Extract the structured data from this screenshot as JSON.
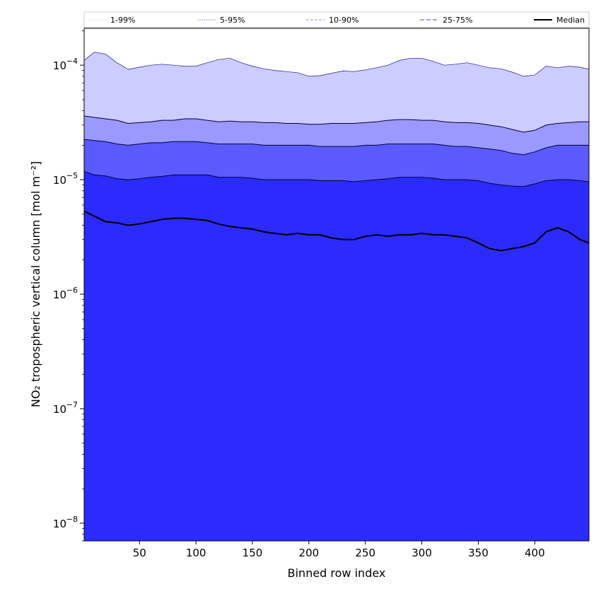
{
  "chart_data": {
    "type": "area",
    "xlabel": "Binned row index",
    "ylabel": "NO₂ tropospheric vertical column [mol m⁻²]",
    "xlim": [
      1,
      448
    ],
    "ylim": [
      7e-09,
      0.00021
    ],
    "yscale": "log",
    "grid": false,
    "legend_position": "top",
    "x_ticks": [
      50,
      100,
      150,
      200,
      250,
      300,
      350,
      400
    ],
    "y_ticks": [
      {
        "value": 1e-08,
        "mantissa": "10",
        "exponent": "−8"
      },
      {
        "value": 1e-07,
        "mantissa": "10",
        "exponent": "−7"
      },
      {
        "value": 1e-06,
        "mantissa": "10",
        "exponent": "−6"
      },
      {
        "value": 1e-05,
        "mantissa": "10",
        "exponent": "−5"
      },
      {
        "value": 0.0001,
        "mantissa": "10",
        "exponent": "−4"
      }
    ],
    "x": [
      1,
      10,
      20,
      30,
      40,
      50,
      60,
      70,
      80,
      90,
      100,
      110,
      120,
      130,
      140,
      150,
      160,
      170,
      180,
      190,
      200,
      210,
      220,
      230,
      240,
      250,
      260,
      270,
      280,
      290,
      300,
      310,
      320,
      330,
      340,
      350,
      360,
      370,
      380,
      390,
      400,
      410,
      420,
      430,
      440,
      448
    ],
    "bands": [
      {
        "name": "1-99%",
        "color": "#ccccff",
        "upper": [
          0.00011,
          0.00013,
          0.000125,
          0.000105,
          9.2e-05,
          9.6e-05,
          0.0001,
          0.000102,
          0.0001,
          9.8e-05,
          9.8e-05,
          0.000105,
          0.000112,
          0.000115,
          0.000105,
          9.8e-05,
          9.3e-05,
          9e-05,
          8.8e-05,
          8.6e-05,
          8e-05,
          8.1e-05,
          8.5e-05,
          8.9e-05,
          8.8e-05,
          9.1e-05,
          9.5e-05,
          0.0001,
          0.00011,
          0.000115,
          0.000115,
          0.000108,
          0.0001,
          0.000102,
          0.000105,
          0.0001,
          9.5e-05,
          9.3e-05,
          8.7e-05,
          8e-05,
          8.2e-05,
          9.8e-05,
          9.5e-05,
          9.8e-05,
          9.6e-05,
          9.2e-05
        ],
        "lower": [
          1.6e-06,
          1.2e-06,
          6e-07,
          5e-07,
          3e-07,
          2.5e-07,
          3e-07,
          6e-07,
          7e-07,
          5e-07,
          3.5e-07,
          4e-07,
          2.5e-07,
          8e-08,
          7e-09,
          7e-09,
          7e-09,
          7e-09,
          7e-09,
          7e-09,
          7e-09,
          7e-09,
          7e-09,
          7e-09,
          7e-09,
          7e-09,
          7e-09,
          7e-09,
          7e-09,
          7e-09,
          7e-09,
          7e-09,
          7e-09,
          7e-09,
          7e-09,
          7e-09,
          7e-09,
          7e-09,
          7e-09,
          7e-09,
          7e-09,
          7e-09,
          7e-09,
          7e-09,
          7e-09,
          7e-09
        ]
      },
      {
        "name": "5-95%",
        "color": "#9999ff",
        "upper": [
          3.6e-05,
          3.5e-05,
          3.4e-05,
          3.3e-05,
          3.1e-05,
          3.15e-05,
          3.2e-05,
          3.3e-05,
          3.3e-05,
          3.4e-05,
          3.4e-05,
          3.3e-05,
          3.2e-05,
          3.25e-05,
          3.2e-05,
          3.2e-05,
          3.15e-05,
          3.15e-05,
          3.1e-05,
          3.1e-05,
          3.05e-05,
          3.05e-05,
          3.1e-05,
          3.1e-05,
          3.1e-05,
          3.15e-05,
          3.2e-05,
          3.3e-05,
          3.35e-05,
          3.35e-05,
          3.3e-05,
          3.3e-05,
          3.2e-05,
          3.15e-05,
          3.15e-05,
          3.1e-05,
          3e-05,
          2.9e-05,
          2.75e-05,
          2.6e-05,
          2.7e-05,
          3e-05,
          3.1e-05,
          3.15e-05,
          3.2e-05,
          3.2e-05
        ],
        "lower": [
          7e-09,
          7e-09,
          7e-09,
          7e-09,
          7e-09,
          7e-09,
          7e-09,
          7e-09,
          7e-09,
          7e-09,
          7e-09,
          7e-09,
          7e-09,
          7e-09,
          7e-09,
          7e-09,
          7e-09,
          7e-09,
          7e-09,
          7e-09,
          7e-09,
          7e-09,
          7e-09,
          7e-09,
          7e-09,
          7e-09,
          7e-09,
          7e-09,
          7e-09,
          7e-09,
          7e-09,
          7e-09,
          7e-09,
          7e-09,
          7e-09,
          7e-09,
          7e-09,
          7e-09,
          7e-09,
          7e-09,
          7e-09,
          7e-09,
          7e-09,
          7e-09,
          7e-09,
          7e-09
        ]
      },
      {
        "name": "10-90%",
        "color": "#5a5aff",
        "upper": [
          2.25e-05,
          2.2e-05,
          2.15e-05,
          2.05e-05,
          2e-05,
          2.05e-05,
          2.1e-05,
          2.1e-05,
          2.15e-05,
          2.15e-05,
          2.15e-05,
          2.1e-05,
          2.05e-05,
          2.05e-05,
          2.05e-05,
          2.05e-05,
          2e-05,
          2e-05,
          2e-05,
          2e-05,
          2e-05,
          1.95e-05,
          1.95e-05,
          1.95e-05,
          1.95e-05,
          2e-05,
          2e-05,
          2.05e-05,
          2.05e-05,
          2.05e-05,
          2.05e-05,
          2.05e-05,
          2e-05,
          1.95e-05,
          1.95e-05,
          1.9e-05,
          1.85e-05,
          1.8e-05,
          1.7e-05,
          1.65e-05,
          1.75e-05,
          1.9e-05,
          2e-05,
          2e-05,
          2e-05,
          2e-05
        ],
        "lower": [
          7e-09,
          7e-09,
          7e-09,
          7e-09,
          7e-09,
          7e-09,
          7e-09,
          7e-09,
          7e-09,
          7e-09,
          7e-09,
          7e-09,
          7e-09,
          7e-09,
          7e-09,
          7e-09,
          7e-09,
          7e-09,
          7e-09,
          7e-09,
          7e-09,
          7e-09,
          7e-09,
          7e-09,
          7e-09,
          7e-09,
          7e-09,
          7e-09,
          7e-09,
          7e-09,
          7e-09,
          7e-09,
          7e-09,
          7e-09,
          7e-09,
          7e-09,
          7e-09,
          7e-09,
          7e-09,
          7e-09,
          7e-09,
          7e-09,
          7e-09,
          7e-09,
          7e-09,
          7e-09
        ]
      },
      {
        "name": "25-75%",
        "color": "#2b2bff",
        "upper": [
          1.18e-05,
          1.1e-05,
          1.08e-05,
          1.02e-05,
          1e-05,
          1.02e-05,
          1.05e-05,
          1.07e-05,
          1.1e-05,
          1.1e-05,
          1.1e-05,
          1.1e-05,
          1.05e-05,
          1.05e-05,
          1.05e-05,
          1.03e-05,
          1e-05,
          1e-05,
          1e-05,
          1e-05,
          1e-05,
          9.8e-06,
          9.8e-06,
          9.8e-06,
          9.6e-06,
          9.8e-06,
          1e-05,
          1.02e-05,
          1.05e-05,
          1.05e-05,
          1.05e-05,
          1.03e-05,
          1e-05,
          1e-05,
          1e-05,
          9.8e-06,
          9.3e-06,
          9e-06,
          8.8e-06,
          8.7e-06,
          9.2e-06,
          9.8e-06,
          1e-05,
          1e-05,
          9.8e-06,
          9.6e-06
        ],
        "lower": [
          7e-09,
          7e-09,
          7e-09,
          7e-09,
          7e-09,
          7e-09,
          7e-09,
          7e-09,
          7e-09,
          7e-09,
          7e-09,
          7e-09,
          7e-09,
          7e-09,
          7e-09,
          7e-09,
          7e-09,
          7e-09,
          7e-09,
          7e-09,
          7e-09,
          7e-09,
          7e-09,
          7e-09,
          7e-09,
          7e-09,
          7e-09,
          7e-09,
          7e-09,
          7e-09,
          7e-09,
          7e-09,
          7e-09,
          7e-09,
          7e-09,
          7e-09,
          7e-09,
          7e-09,
          7e-09,
          7e-09,
          7e-09,
          7e-09,
          7e-09,
          7e-09,
          7e-09,
          7e-09
        ]
      }
    ],
    "median": {
      "name": "Median",
      "color": "#000000",
      "values": [
        5.3e-06,
        4.8e-06,
        4.3e-06,
        4.2e-06,
        4e-06,
        4.1e-06,
        4.3e-06,
        4.5e-06,
        4.6e-06,
        4.6e-06,
        4.5e-06,
        4.4e-06,
        4.1e-06,
        3.9e-06,
        3.8e-06,
        3.7e-06,
        3.5e-06,
        3.4e-06,
        3.3e-06,
        3.4e-06,
        3.3e-06,
        3.3e-06,
        3.1e-06,
        3e-06,
        3e-06,
        3.2e-06,
        3.3e-06,
        3.2e-06,
        3.3e-06,
        3.3e-06,
        3.4e-06,
        3.3e-06,
        3.3e-06,
        3.2e-06,
        3.1e-06,
        2.8e-06,
        2.5e-06,
        2.4e-06,
        2.5e-06,
        2.6e-06,
        2.8e-06,
        3.5e-06,
        3.8e-06,
        3.5e-06,
        3e-06,
        2.8e-06
      ]
    }
  }
}
